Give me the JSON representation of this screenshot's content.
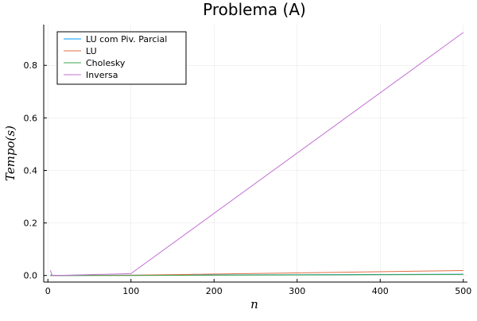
{
  "chart_data": {
    "type": "line",
    "title": "Problema (A)",
    "xlabel": "n",
    "ylabel": "Tempo(s)",
    "xlim": [
      -5,
      505
    ],
    "ylim": [
      -0.025,
      0.955
    ],
    "xticks": [
      0,
      100,
      200,
      300,
      400,
      500
    ],
    "yticks": [
      0.0,
      0.2,
      0.4,
      0.6,
      0.8
    ],
    "ytick_labels": [
      "0.0",
      "0.2",
      "0.4",
      "0.6",
      "0.8"
    ],
    "grid": true,
    "legend_position": "top-left",
    "series": [
      {
        "name": "LU com Piv. Parcial",
        "color": "#009af9",
        "x": [
          3,
          10,
          100,
          500
        ],
        "y": [
          0.002,
          0.0,
          0.001,
          0.005
        ]
      },
      {
        "name": "LU",
        "color": "#e26f46",
        "x": [
          3,
          10,
          100,
          500
        ],
        "y": [
          0.0,
          0.0,
          0.001,
          0.019
        ]
      },
      {
        "name": "Cholesky",
        "color": "#3da44d",
        "x": [
          3,
          10,
          100,
          500
        ],
        "y": [
          0.0,
          0.0,
          0.0,
          0.004
        ]
      },
      {
        "name": "Inversa",
        "color": "#c271d2",
        "x": [
          3,
          5,
          10,
          100,
          500
        ],
        "y": [
          0.02,
          0.0,
          0.0,
          0.007,
          0.925
        ]
      }
    ]
  }
}
